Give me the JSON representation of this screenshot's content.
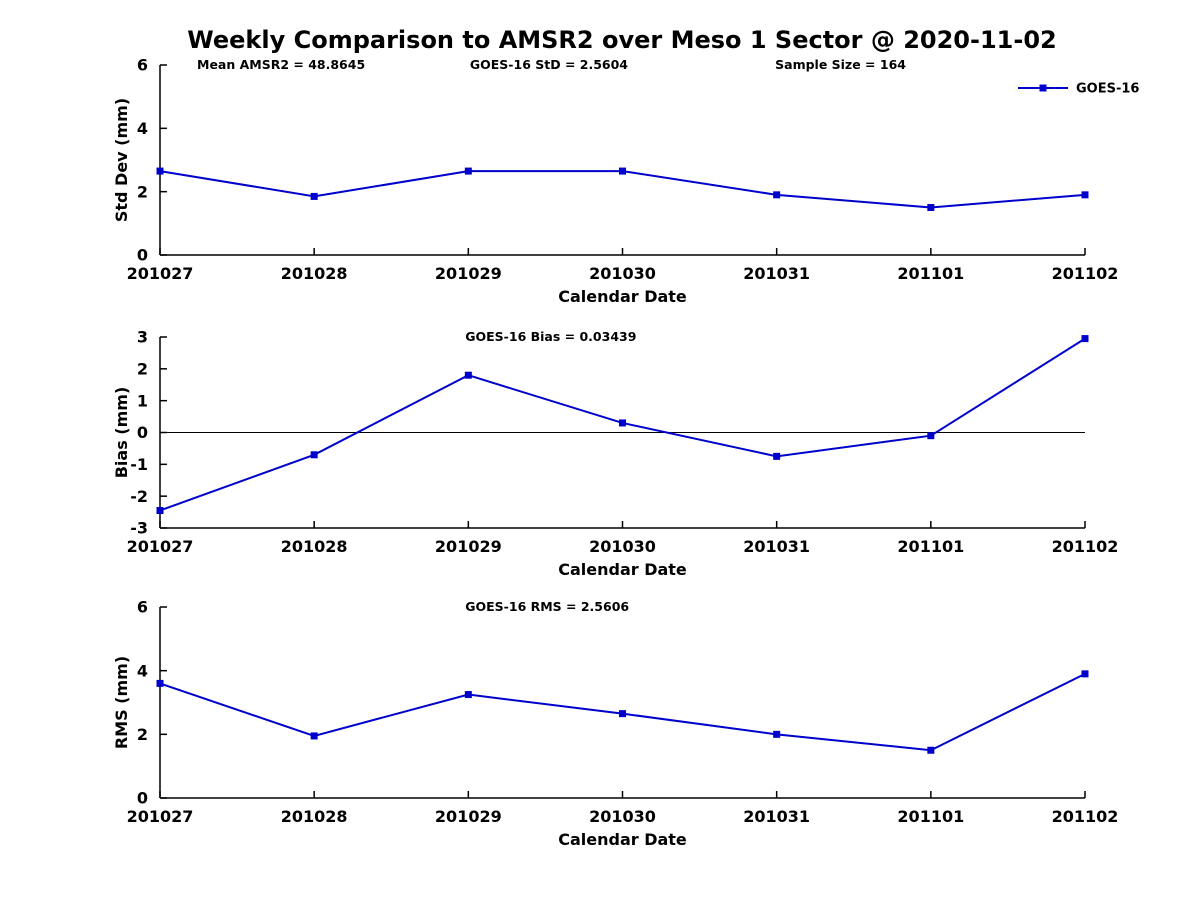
{
  "figure": {
    "title": "Weekly Comparison to AMSR2 over Meso 1 Sector @ 2020-11-02",
    "accent_color": "#0000cc",
    "axis_color": "#000000"
  },
  "chart_data": [
    {
      "type": "line",
      "ylabel": "Std Dev (mm)",
      "xlabel": "Calendar Date",
      "ylim": [
        0,
        6
      ],
      "yticks": [
        0,
        2,
        4,
        6
      ],
      "categories": [
        "201027",
        "201028",
        "201029",
        "201030",
        "201031",
        "201101",
        "201102"
      ],
      "series": [
        {
          "name": "GOES-16",
          "color": "#0000cc",
          "marker": "square",
          "values": [
            2.65,
            1.85,
            2.65,
            2.65,
            1.9,
            1.5,
            1.9
          ]
        }
      ],
      "annotations": [
        "Mean AMSR2 = 48.8645",
        "GOES-16 StD = 2.5604",
        "Sample Size = 164"
      ],
      "legend": {
        "label": "GOES-16",
        "position": "top-right"
      },
      "grid": false,
      "zero_line": false
    },
    {
      "type": "line",
      "ylabel": "Bias (mm)",
      "xlabel": "Calendar Date",
      "ylim": [
        -3,
        3
      ],
      "yticks": [
        -3,
        -2,
        -1,
        0,
        1,
        2,
        3
      ],
      "categories": [
        "201027",
        "201028",
        "201029",
        "201030",
        "201031",
        "201101",
        "201102"
      ],
      "series": [
        {
          "name": "GOES-16",
          "color": "#0000cc",
          "marker": "square",
          "values": [
            -2.45,
            -0.7,
            1.8,
            0.3,
            -0.75,
            -0.1,
            2.95
          ]
        }
      ],
      "annotations": [
        "GOES-16 Bias  = 0.03439"
      ],
      "grid": false,
      "zero_line": true
    },
    {
      "type": "line",
      "ylabel": "RMS (mm)",
      "xlabel": "Calendar Date",
      "ylim": [
        0,
        6
      ],
      "yticks": [
        0,
        2,
        4,
        6
      ],
      "categories": [
        "201027",
        "201028",
        "201029",
        "201030",
        "201031",
        "201101",
        "201102"
      ],
      "series": [
        {
          "name": "GOES-16",
          "color": "#0000cc",
          "marker": "square",
          "values": [
            3.6,
            1.95,
            3.25,
            2.65,
            2.0,
            1.5,
            3.9
          ]
        }
      ],
      "annotations": [
        "GOES-16 RMS = 2.5606"
      ],
      "grid": false,
      "zero_line": false
    }
  ]
}
